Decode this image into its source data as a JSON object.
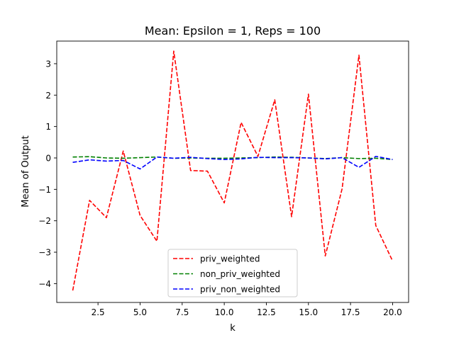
{
  "chart_data": {
    "type": "line",
    "title": "Mean: Epsilon = 1, Reps = 100",
    "xlabel": "k",
    "ylabel": "Mean of Output",
    "xlim": [
      0.05,
      20.95
    ],
    "ylim": [
      -4.6,
      3.72
    ],
    "xticks": [
      2.5,
      5.0,
      7.5,
      10.0,
      12.5,
      15.0,
      17.5,
      20.0
    ],
    "xtick_labels": [
      "2.5",
      "5.0",
      "7.5",
      "10.0",
      "12.5",
      "15.0",
      "17.5",
      "20.0"
    ],
    "yticks": [
      -4,
      -3,
      -2,
      -1,
      0,
      1,
      2,
      3
    ],
    "ytick_labels": [
      "−4",
      "−3",
      "−2",
      "−1",
      "0",
      "1",
      "2",
      "3"
    ],
    "grid": false,
    "legend_position": "lower center",
    "x": [
      1,
      2,
      3,
      4,
      5,
      6,
      7,
      8,
      9,
      10,
      11,
      12,
      13,
      14,
      15,
      16,
      17,
      18,
      19,
      20
    ],
    "series": [
      {
        "name": "priv_weighted",
        "color": "#ff0000",
        "style": "dashed",
        "values": [
          -4.22,
          -1.35,
          -1.9,
          0.22,
          -1.83,
          -2.65,
          3.4,
          -0.4,
          -0.42,
          -1.43,
          1.13,
          0.05,
          1.85,
          -1.87,
          2.03,
          -3.12,
          -0.98,
          3.27,
          -2.15,
          -3.28
        ]
      },
      {
        "name": "non_priv_weighted",
        "color": "#008000",
        "style": "dashed",
        "values": [
          0.03,
          0.04,
          0.0,
          -0.01,
          0.01,
          0.03,
          -0.01,
          0.0,
          -0.01,
          -0.01,
          0.0,
          0.01,
          0.03,
          0.02,
          0.0,
          -0.02,
          0.01,
          -0.02,
          -0.01,
          -0.05
        ]
      },
      {
        "name": "priv_non_weighted",
        "color": "#0000ff",
        "style": "dashed",
        "values": [
          -0.14,
          -0.06,
          -0.1,
          -0.08,
          -0.35,
          0.03,
          -0.01,
          0.02,
          -0.02,
          -0.05,
          -0.03,
          0.02,
          0.01,
          0.01,
          0.0,
          -0.03,
          0.01,
          -0.3,
          0.05,
          -0.05
        ]
      }
    ]
  }
}
